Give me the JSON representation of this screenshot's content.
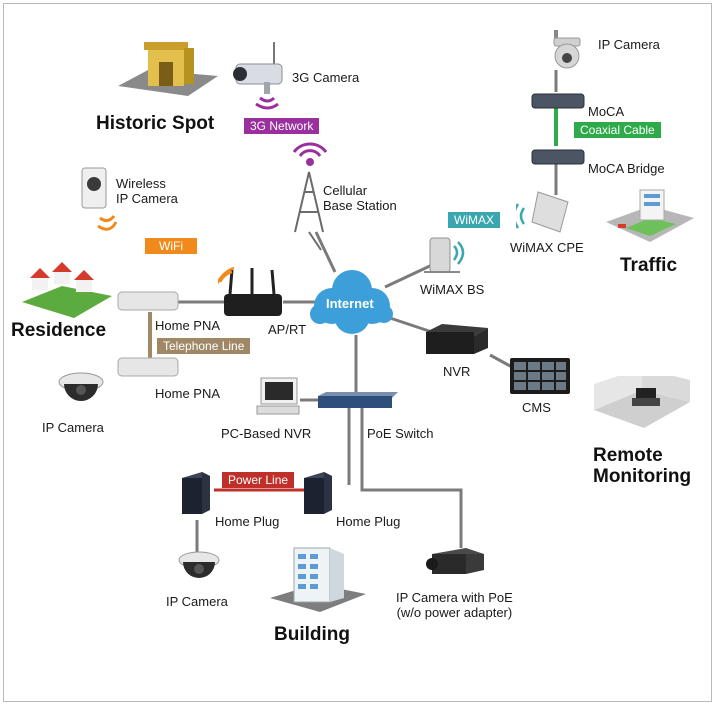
{
  "labels": {
    "ip_camera_top": "IP Camera",
    "moca": "MoCA",
    "moca_bridge": "MoCA Bridge",
    "wimax_cpe": "WiMAX CPE",
    "camera_3g": "3G Camera",
    "wireless_ip_camera": "Wireless\nIP Camera",
    "cellular_base_station": "Cellular\nBase Station",
    "wimax_bs": "WiMAX BS",
    "home_pna_top": "Home PNA",
    "ap_rt": "AP/RT",
    "home_pna_bottom": "Home PNA",
    "ip_camera_left": "IP Camera",
    "nvr": "NVR",
    "cms": "CMS",
    "pc_based_nvr": "PC-Based NVR",
    "poe_switch": "PoE Switch",
    "home_plug_left": "Home Plug",
    "home_plug_right": "Home Plug",
    "ip_camera_bottom": "IP Camera",
    "ip_camera_poe": "IP Camera with PoE\n(w/o power adapter)",
    "internet": "Internet"
  },
  "areas": {
    "historic_spot": "Historic  Spot",
    "traffic": "Traffic",
    "residence": "Residence",
    "remote_monitoring": "Remote\nMonitoring",
    "building": "Building"
  },
  "links": {
    "network_3g": "3G Network",
    "coaxial_cable": "Coaxial Cable",
    "wimax": "WiMAX",
    "wifi": "WiFi",
    "telephone_line": "Telephone Line",
    "power_line": "Power Line"
  },
  "colors": {
    "network_3g": "#9a2f9e",
    "coaxial_cable": "#2eaa4a",
    "wimax": "#3aa7b0",
    "wifi": "#f08a1c",
    "telephone_line": "#a08866",
    "power_line": "#c0302b",
    "cloud": "#3c9fd9",
    "line": "#7b7b7b"
  }
}
